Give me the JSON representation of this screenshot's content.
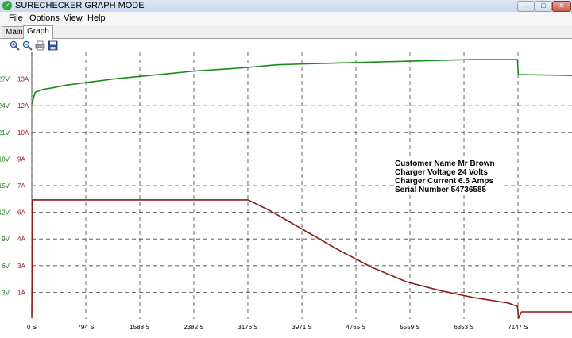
{
  "window": {
    "title": "SURECHECKER GRAPH MODE",
    "minimize_glyph": "–",
    "maximize_glyph": "□",
    "close_glyph": "✕"
  },
  "menu": {
    "file": "File",
    "options": "Options",
    "view": "View",
    "help": "Help"
  },
  "tabs": {
    "main": "Main",
    "graph": "Graph",
    "active": "Graph"
  },
  "toolbar": {
    "icons": [
      "zoom-in-icon",
      "zoom-out-icon",
      "print-icon",
      "save-icon"
    ]
  },
  "info": {
    "line1": "Customer Name Mr Brown",
    "line2": "Charger Voltage 24 Volts",
    "line3": "Charger Current 6.5 Amps",
    "line4": "Serial Number 54736585"
  },
  "chart_data": {
    "type": "line",
    "title": "",
    "x_ticks": [
      "0 S",
      "794 S",
      "1588 S",
      "2382 S",
      "3176 S",
      "3971 S",
      "4765 S",
      "5559 S",
      "6353 S",
      "7147 S"
    ],
    "xlim": [
      0,
      7941
    ],
    "y_voltage_ticks": [
      "3V",
      "6V",
      "9V",
      "12V",
      "15V",
      "18V",
      "21V",
      "24V",
      "27V"
    ],
    "y_current_ticks": [
      "1A",
      "3A",
      "4A",
      "6A",
      "7A",
      "9A",
      "10A",
      "12A",
      "13A"
    ],
    "ylim_voltage": [
      0,
      30
    ],
    "ylim_current": [
      0,
      15
    ],
    "grid": true,
    "colors": {
      "voltage": "#1a8a1a",
      "current": "#8b1a1a",
      "voltage_label": "#1a7a1a",
      "current_label": "#a01818",
      "grid": "#444444",
      "background": "#ffffff"
    },
    "series": [
      {
        "unit": "V",
        "color": "#1a8a1a",
        "x": [
          0,
          50,
          150,
          300,
          500,
          800,
          1200,
          1600,
          2000,
          2400,
          2800,
          3176,
          3600,
          4000,
          4500,
          5000,
          5500,
          6000,
          6500,
          7000,
          7140,
          7150,
          7941
        ],
        "y": [
          24.2,
          25.5,
          25.8,
          26.0,
          26.3,
          26.6,
          27.0,
          27.3,
          27.6,
          27.9,
          28.1,
          28.3,
          28.6,
          28.7,
          28.8,
          28.9,
          29.0,
          29.1,
          29.2,
          29.2,
          29.2,
          27.5,
          27.4
        ]
      },
      {
        "unit": "A",
        "color": "#8b1a1a",
        "x": [
          0,
          10,
          500,
          1000,
          1500,
          2000,
          2500,
          3000,
          3176,
          3500,
          4000,
          4500,
          5000,
          5500,
          6000,
          6500,
          7000,
          7140,
          7155,
          7200,
          7941
        ],
        "y": [
          0.1,
          6.7,
          6.7,
          6.7,
          6.7,
          6.7,
          6.7,
          6.7,
          6.7,
          6.1,
          5.0,
          3.9,
          2.9,
          2.1,
          1.6,
          1.2,
          0.9,
          0.7,
          0.05,
          0.4,
          0.4
        ]
      }
    ]
  }
}
